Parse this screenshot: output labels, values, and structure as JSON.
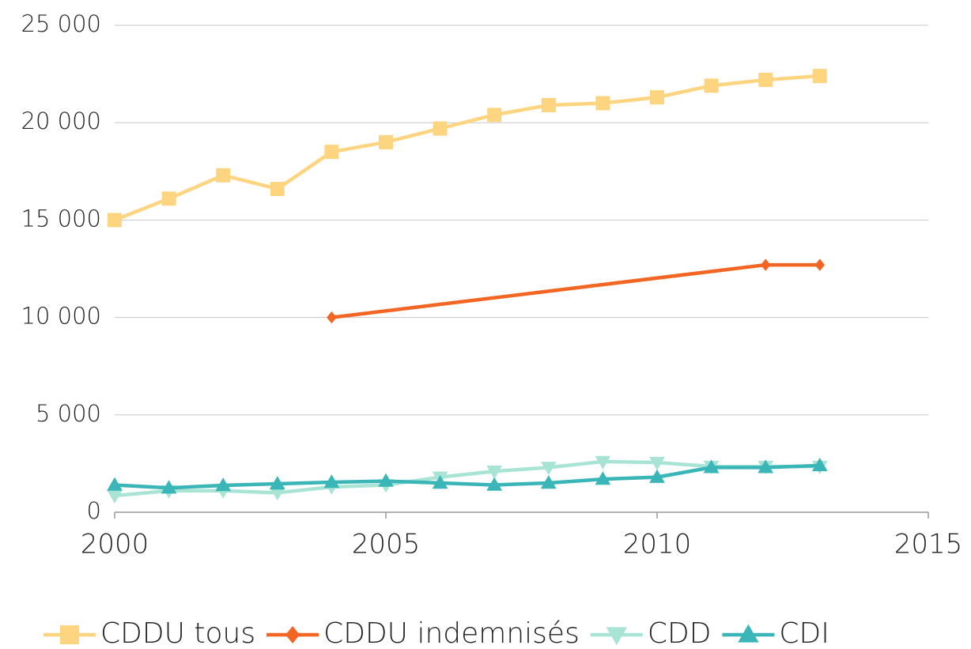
{
  "chart_data": {
    "type": "line",
    "xlim": [
      2000,
      2015
    ],
    "xticks": [
      2000,
      2005,
      2010,
      2015
    ],
    "ylim": [
      0,
      25000
    ],
    "yticks": [
      0,
      {
        "value": 5000,
        "label": "5 000"
      },
      {
        "value": 10000,
        "label": "10 000"
      },
      {
        "value": 15000,
        "label": "15 000"
      },
      {
        "value": 20000,
        "label": "20 000"
      },
      {
        "value": 25000,
        "label": "25 000"
      }
    ],
    "grid": true,
    "legend": "bottom",
    "series": [
      {
        "name": "CDDU tous",
        "color": "#fdd580",
        "marker": "square",
        "x": [
          2000,
          2001,
          2002,
          2003,
          2004,
          2005,
          2006,
          2007,
          2008,
          2009,
          2010,
          2011,
          2012,
          2013
        ],
        "values": [
          15000,
          16100,
          17300,
          16600,
          18500,
          19000,
          19700,
          20400,
          20900,
          21000,
          21300,
          21900,
          22200,
          22400
        ]
      },
      {
        "name": "CDDU indemnisés",
        "color": "#f26522",
        "marker": "diamond",
        "x": [
          2004,
          2012,
          2013
        ],
        "values": [
          10000,
          12700,
          12700
        ]
      },
      {
        "name": "CDD",
        "color": "#a8e4d4",
        "marker": "triangle-down",
        "x": [
          2000,
          2001,
          2002,
          2003,
          2004,
          2005,
          2006,
          2007,
          2008,
          2009,
          2010,
          2011,
          2012,
          2013
        ],
        "values": [
          850,
          1100,
          1100,
          1000,
          1300,
          1400,
          1800,
          2100,
          2300,
          2600,
          2550,
          2350,
          2350,
          2350
        ]
      },
      {
        "name": "CDI",
        "color": "#3ab5b8",
        "marker": "triangle-up",
        "x": [
          2000,
          2001,
          2002,
          2003,
          2004,
          2005,
          2006,
          2007,
          2008,
          2009,
          2010,
          2011,
          2012,
          2013
        ],
        "values": [
          1400,
          1250,
          1380,
          1460,
          1540,
          1600,
          1500,
          1400,
          1500,
          1700,
          1800,
          2300,
          2300,
          2400
        ]
      }
    ]
  }
}
